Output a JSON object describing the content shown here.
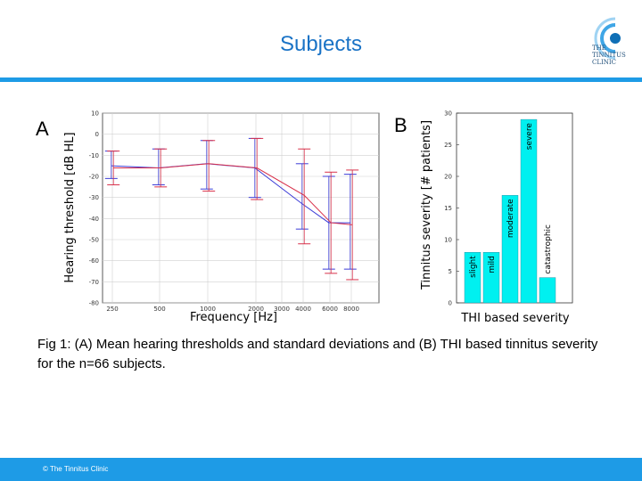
{
  "slide": {
    "title": "Subjects",
    "caption_line1": "Fig 1: (A) Mean hearing thresholds and standard deviations and (B) THI based tinnitus severity",
    "caption_line2": "for the n=66 subjects.",
    "footer": "© The Tinnitus Clinic",
    "logo_lines": [
      "THE",
      "TINNITUS",
      "CLINIC"
    ]
  },
  "colors": {
    "accent": "#1e9be6",
    "title": "#1a73c6",
    "blue": "#3b3bd6",
    "red": "#d8304a",
    "cyan": "#00f0f0"
  },
  "chart_data": [
    {
      "type": "line",
      "panel_label": "A",
      "xlabel": "Frequency [Hz]",
      "ylabel": "Hearing threshold [dB HL]",
      "x_ticks": [
        "250",
        "500",
        "1000",
        "2000",
        "3000",
        "4000",
        "6000",
        "8000"
      ],
      "y_ticks": [
        "10",
        "0",
        "-10",
        "-20",
        "-30",
        "-40",
        "-50",
        "-60",
        "-70",
        "-80"
      ],
      "ylim": [
        -80,
        10
      ],
      "y_inverted_labels": true,
      "grid": true,
      "x": [
        250,
        500,
        1000,
        2000,
        4000,
        6000,
        8000
      ],
      "series": [
        {
          "color": "blue",
          "values": [
            -15,
            -16,
            -14,
            -16,
            -33,
            -42,
            -42
          ],
          "err_low": [
            -21,
            -24,
            -26,
            -30,
            -45,
            -64,
            -64
          ],
          "err_high": [
            -8,
            -7,
            -3,
            -2,
            -14,
            -20,
            -19
          ]
        },
        {
          "color": "red",
          "values": [
            -16,
            -16,
            -14,
            -16,
            -29,
            -42,
            -43
          ],
          "err_low": [
            -24,
            -25,
            -27,
            -31,
            -52,
            -66,
            -69
          ],
          "err_high": [
            -8,
            -7,
            -3,
            -2,
            -7,
            -18,
            -17
          ]
        }
      ]
    },
    {
      "type": "bar",
      "panel_label": "B",
      "xlabel": "THI based severity",
      "ylabel": "Tinnitus severity [# patients]",
      "categories": [
        "slight",
        "mild",
        "moderate",
        "severe",
        "catastrophic"
      ],
      "values": [
        8,
        8,
        17,
        29,
        4
      ],
      "ylim": [
        0,
        30
      ],
      "y_ticks": [
        "0",
        "5",
        "10",
        "15",
        "20",
        "25",
        "30"
      ]
    }
  ]
}
